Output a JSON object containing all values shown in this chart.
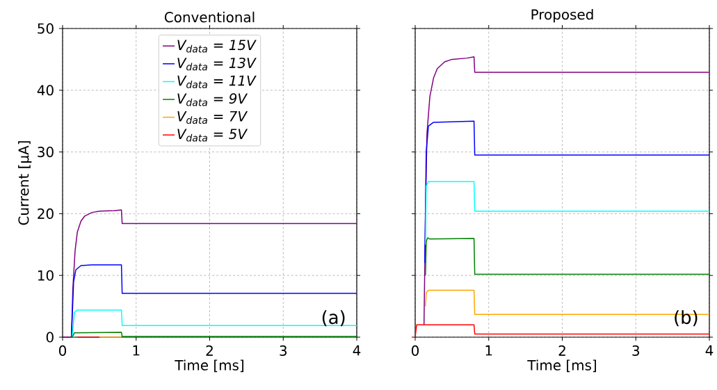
{
  "chart_data": [
    {
      "type": "line",
      "title": "Conventional",
      "xlabel": "Time [ms]",
      "ylabel": "Current [μA]",
      "xlim": [
        0,
        4
      ],
      "ylim": [
        0,
        50
      ],
      "xticks": [
        0,
        1,
        2,
        3,
        4
      ],
      "yticks": [
        0,
        10,
        20,
        30,
        40,
        50
      ],
      "grid": true,
      "legend": "top",
      "line_style": "solid",
      "annotations": [
        "(a)"
      ],
      "series": [
        {
          "name": "V$_{data}$ = 15V",
          "color": "#800080",
          "x": [
            0,
            0.12,
            0.14,
            0.17,
            0.2,
            0.25,
            0.3,
            0.4,
            0.5,
            0.7,
            0.8,
            0.81,
            4
          ],
          "values": [
            0,
            0,
            8,
            14,
            17,
            18.8,
            19.6,
            20.2,
            20.4,
            20.5,
            20.6,
            18.4,
            18.4
          ]
        },
        {
          "name": "V$_{data}$ = 13V",
          "color": "#0000ff",
          "x": [
            0.12,
            0.15,
            0.18,
            0.25,
            0.4,
            0.8,
            0.81,
            4
          ],
          "values": [
            0,
            9,
            10.9,
            11.6,
            11.7,
            11.7,
            7.1,
            7.1
          ]
        },
        {
          "name": "V$_{data}$ = 11V",
          "color": "#00ffff",
          "x": [
            0.13,
            0.16,
            0.2,
            0.8,
            0.81,
            4
          ],
          "values": [
            0,
            4,
            4.4,
            4.4,
            1.9,
            1.9
          ]
        },
        {
          "name": "V$_{data}$ = 9V",
          "color": "#008000",
          "x": [
            0.13,
            0.16,
            0.8,
            0.81,
            4
          ],
          "values": [
            0,
            0.7,
            0.8,
            0.1,
            0.1
          ]
        },
        {
          "name": "V$_{data}$ = 7V",
          "color": "#ffa500",
          "x": [
            0.5,
            0.8
          ],
          "values": [
            0,
            0
          ]
        },
        {
          "name": "V$_{data}$ = 5V",
          "color": "#ff0000",
          "x": [
            0.2,
            0.5
          ],
          "values": [
            0,
            0
          ]
        }
      ]
    },
    {
      "type": "line",
      "title": "Proposed",
      "xlabel": "Time [ms]",
      "xlim": [
        0,
        4
      ],
      "ylim": [
        0,
        50
      ],
      "xticks": [
        0,
        1,
        2,
        3,
        4
      ],
      "yticks": [
        0,
        10,
        20,
        30,
        40,
        50
      ],
      "grid": true,
      "legend": false,
      "tick_labels": "x",
      "line_style": "solid",
      "annotations": [
        "(b)"
      ],
      "series": [
        {
          "color": "#800080",
          "x": [
            0.12,
            0.14,
            0.16,
            0.2,
            0.25,
            0.3,
            0.4,
            0.5,
            0.7,
            0.8,
            0.81,
            4
          ],
          "values": [
            2,
            20,
            33,
            39,
            42,
            43.5,
            44.6,
            45,
            45.2,
            45.4,
            42.9,
            42.9
          ]
        },
        {
          "color": "#0000ff",
          "x": [
            0.13,
            0.15,
            0.18,
            0.25,
            0.8,
            0.81,
            4
          ],
          "values": [
            12,
            30,
            34.2,
            34.8,
            35,
            29.5,
            29.5
          ]
        },
        {
          "color": "#00ffff",
          "x": [
            0.14,
            0.15,
            0.18,
            0.8,
            0.81,
            4
          ],
          "values": [
            15,
            24.5,
            25.2,
            25.2,
            20.4,
            20.4
          ]
        },
        {
          "color": "#008000",
          "x": [
            0.14,
            0.15,
            0.17,
            0.2,
            0.8,
            0.81,
            4
          ],
          "values": [
            10,
            15.5,
            16.1,
            15.9,
            16,
            10.2,
            10.2
          ]
        },
        {
          "color": "#ffa500",
          "x": [
            0.14,
            0.15,
            0.18,
            0.8,
            0.81,
            4
          ],
          "values": [
            5,
            7.2,
            7.6,
            7.6,
            3.7,
            3.7
          ]
        },
        {
          "color": "#ff0000",
          "x": [
            0,
            0.02,
            0.8,
            0.81,
            4
          ],
          "values": [
            0,
            2,
            2,
            0.5,
            0.5
          ]
        }
      ]
    }
  ]
}
